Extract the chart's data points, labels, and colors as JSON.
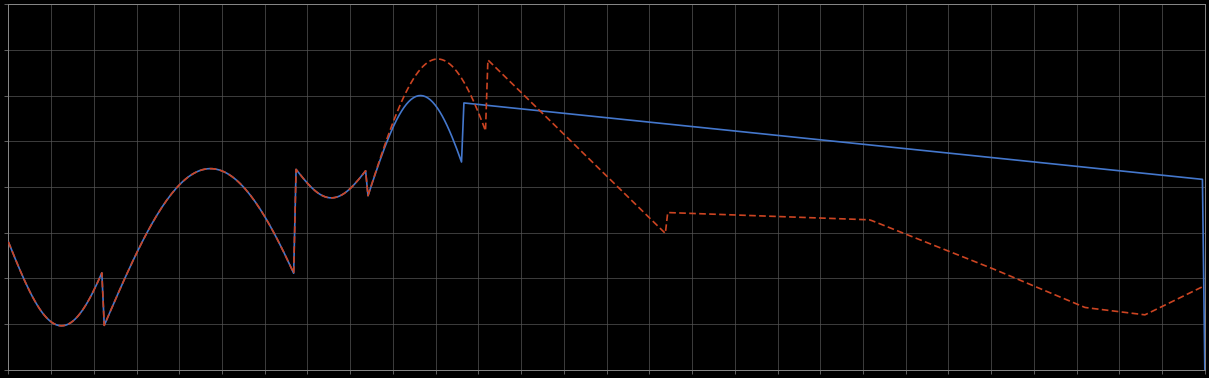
{
  "background_color": "#000000",
  "plot_bg_color": "#000000",
  "grid_color": "#555555",
  "line1_color": "#4477cc",
  "line2_color": "#cc4422",
  "figsize": [
    12.09,
    3.78
  ],
  "dpi": 100,
  "xlim": [
    0,
    100
  ],
  "ylim": [
    0,
    10
  ],
  "n_gridlines_x": 28,
  "n_gridlines_y": 8,
  "spine_color": "#888888"
}
